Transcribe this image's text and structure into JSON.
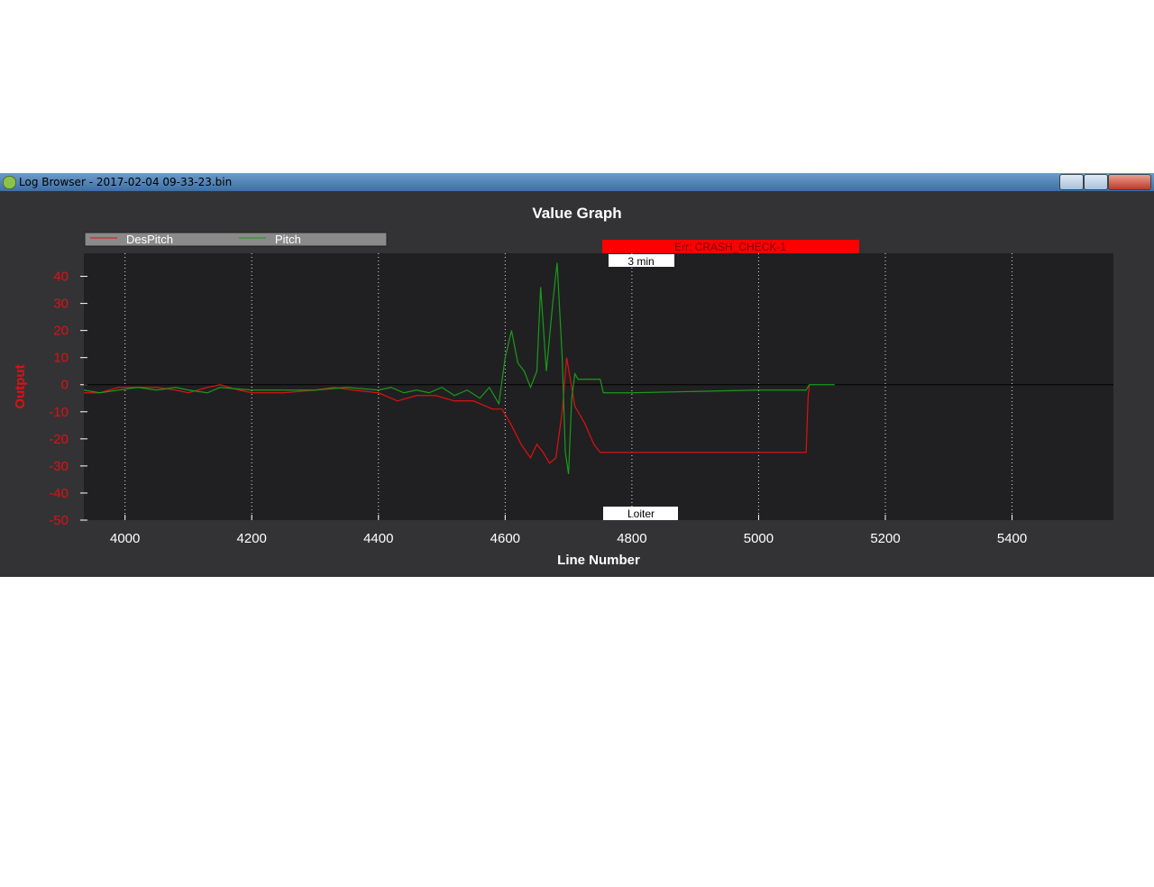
{
  "window": {
    "title": "Log Browser - 2017-02-04 09-33-23.bin"
  },
  "chart_data": {
    "type": "line",
    "title": "Value Graph",
    "xlabel": "Line Number",
    "ylabel": "Output",
    "xlim": [
      3935,
      5560
    ],
    "ylim": [
      -50,
      48.5
    ],
    "xticks": [
      4000,
      4200,
      4400,
      4600,
      4800,
      5000,
      5200,
      5400
    ],
    "yticks": [
      -50,
      -40,
      -30,
      -20,
      -10,
      0,
      10,
      20,
      30,
      40
    ],
    "grid": true,
    "annotations": [
      "Err: CRASH_CHECK-1",
      "3 min",
      "Loiter"
    ],
    "series": [
      {
        "name": "DesPitch",
        "color": "#e01010",
        "x": [
          3935,
          3960,
          3990,
          4020,
          4050,
          4080,
          4100,
          4130,
          4150,
          4180,
          4200,
          4250,
          4300,
          4330,
          4360,
          4400,
          4430,
          4460,
          4490,
          4520,
          4550,
          4580,
          4595,
          4610,
          4625,
          4640,
          4650,
          4660,
          4670,
          4680,
          4690,
          4697,
          4710,
          4725,
          4740,
          4750,
          4800,
          4900,
          5000,
          5075,
          5078,
          5080
        ],
        "values": [
          -3,
          -3,
          -1,
          -1,
          -1,
          -2,
          -3,
          -1,
          0,
          -2,
          -3,
          -3,
          -2,
          -1,
          -2,
          -3,
          -6,
          -4,
          -4,
          -6,
          -6,
          -9,
          -9,
          -15,
          -22,
          -27,
          -22,
          -25,
          -29,
          -27,
          -10,
          10,
          -8,
          -14,
          -22,
          -25,
          -25,
          -25,
          -25,
          -25,
          -5,
          0
        ]
      },
      {
        "name": "Pitch",
        "color": "#1a9a1a",
        "x": [
          3935,
          3960,
          3990,
          4020,
          4050,
          4080,
          4100,
          4130,
          4150,
          4200,
          4250,
          4300,
          4350,
          4400,
          4420,
          4440,
          4460,
          4480,
          4500,
          4520,
          4540,
          4560,
          4575,
          4590,
          4600,
          4610,
          4620,
          4630,
          4640,
          4650,
          4656,
          4665,
          4675,
          4682,
          4690,
          4695,
          4700,
          4705,
          4710,
          4715,
          4750,
          4755,
          4800,
          4900,
          5000,
          5075,
          5080,
          5100,
          5120
        ],
        "values": [
          -2,
          -3,
          -2,
          -1,
          -2,
          -1,
          -2,
          -3,
          -1,
          -2,
          -2,
          -2,
          -1,
          -2,
          -1,
          -3,
          -2,
          -3,
          -1,
          -4,
          -2,
          -5,
          -1,
          -7,
          10,
          20,
          8,
          5,
          -1,
          5,
          36,
          5,
          30,
          45,
          10,
          -25,
          -33,
          -5,
          4,
          2,
          2,
          -3,
          -3,
          -2.5,
          -2,
          -2,
          0,
          0,
          0
        ]
      }
    ]
  }
}
